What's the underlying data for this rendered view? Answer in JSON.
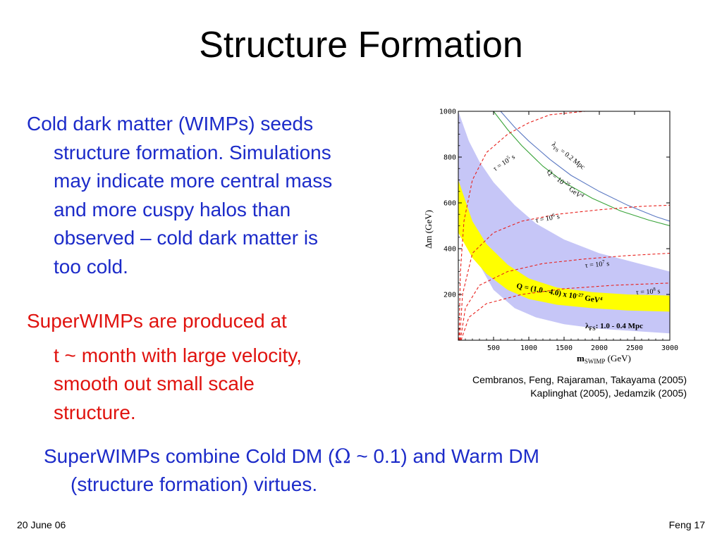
{
  "slide": {
    "title": "Structure Formation",
    "para1": {
      "lines": [
        "Cold dark matter (WIMPs) seeds",
        "structure formation. Simulations",
        "may indicate more central mass",
        "and more cuspy halos than",
        "observed – cold dark matter is",
        "too cold."
      ]
    },
    "para2": {
      "lines": [
        "SuperWIMPs are produced at",
        "t ~ month with large velocity,",
        "smooth out small scale",
        "structure."
      ]
    },
    "para3": {
      "line1_pre": "SuperWIMPs combine Cold DM (",
      "omega": "Ω",
      "line1_post": " ~ 0.1) and Warm DM",
      "line2": "(structure formation) virtues."
    },
    "caption": {
      "line1": "Cembranos, Feng, Rajaraman, Takayama (2005)",
      "line2": "Kaplinghat (2005), Jedamzik (2005)"
    },
    "footer": {
      "left": "20 June 06",
      "right": "Feng 17"
    },
    "colors": {
      "blue_text": "#1c2bc9",
      "red_text": "#e0130f",
      "band_yellow": "#ffff00",
      "band_lavender": "#c6c6f7",
      "tau_lines": "#e8201c",
      "lambda_line": "#5a78c2",
      "q_line": "#3aa43a"
    }
  },
  "chart_data": {
    "type": "line",
    "xlim": [
      0,
      3000
    ],
    "ylim": [
      0,
      1000
    ],
    "x_ticks": [
      "500",
      "1000",
      "1500",
      "2000",
      "2500",
      "3000"
    ],
    "y_ticks": [
      "200",
      "400",
      "600",
      "800",
      "1000"
    ],
    "x_tick_values": [
      500,
      1000,
      1500,
      2000,
      2500,
      3000
    ],
    "y_tick_values": [
      200,
      400,
      600,
      800,
      1000
    ],
    "xlabel_main": "m",
    "xlabel_sub": "SWIMP",
    "xlabel_unit": " (GeV)",
    "ylabel": "Δm (GeV)",
    "series": [
      {
        "name": "λFS = 0.2 Mpc",
        "kind": "lambda",
        "x": [
          600,
          800,
          1000,
          1300,
          1600,
          2000,
          2400,
          2800,
          3000
        ],
        "y": [
          1000,
          930,
          870,
          790,
          720,
          650,
          590,
          540,
          520
        ]
      },
      {
        "name": "Q = 10^-25 GeV^4",
        "kind": "q",
        "x": [
          500,
          700,
          900,
          1200,
          1500,
          1900,
          2300,
          2700,
          3000
        ],
        "y": [
          1000,
          920,
          850,
          760,
          690,
          620,
          565,
          525,
          500
        ]
      },
      {
        "name": "τ = 10^5 s",
        "kind": "tau",
        "x": [
          10,
          30,
          80,
          200,
          400,
          700,
          1000,
          1300,
          1800
        ],
        "y": [
          0,
          300,
          520,
          700,
          820,
          900,
          950,
          985,
          1000
        ]
      },
      {
        "name": "τ = 10^6 s",
        "kind": "tau",
        "x": [
          20,
          60,
          200,
          500,
          900,
          1400,
          2000,
          2600,
          3000
        ],
        "y": [
          0,
          200,
          380,
          470,
          520,
          550,
          570,
          585,
          590
        ]
      },
      {
        "name": "τ = 10^7 s",
        "kind": "tau",
        "x": [
          30,
          100,
          300,
          700,
          1200,
          1800,
          2400,
          3000
        ],
        "y": [
          0,
          140,
          240,
          300,
          335,
          355,
          370,
          380
        ]
      },
      {
        "name": "τ = 10^8 s",
        "kind": "tau",
        "x": [
          40,
          150,
          400,
          900,
          1500,
          2200,
          3000
        ],
        "y": [
          0,
          100,
          160,
          200,
          225,
          240,
          250
        ]
      }
    ],
    "bands": [
      {
        "name": "λFS = 1.0 - 0.4 Mpc",
        "color": "lavender",
        "x": [
          0,
          150,
          300,
          500,
          800,
          1100,
          1500,
          2000,
          2500,
          3000
        ],
        "upper": [
          1000,
          870,
          780,
          690,
          590,
          510,
          440,
          380,
          340,
          300
        ],
        "lower": [
          650,
          470,
          330,
          220,
          140,
          100,
          70,
          50,
          40,
          30
        ]
      },
      {
        "name": "Q = (1.0 - 4.0) x 10^-27 GeV^4",
        "color": "yellow",
        "x": [
          0,
          200,
          400,
          700,
          1000,
          1400,
          1900,
          2400,
          3000
        ],
        "upper": [
          700,
          520,
          420,
          330,
          270,
          230,
          210,
          200,
          195
        ],
        "lower": [
          470,
          360,
          290,
          220,
          180,
          155,
          140,
          130,
          125
        ]
      }
    ],
    "annotations": [
      {
        "text": "τ = 10",
        "sup": "5",
        "unit": " s"
      },
      {
        "text": "λ",
        "sub": "FS",
        "unit": " = 0.2 Mpc"
      },
      {
        "text": "Q = 10",
        "sup": "-25",
        "unit": " GeV",
        "sup2": "4"
      },
      {
        "text": "τ = 10",
        "sup": "6",
        "unit": " s"
      },
      {
        "text": "τ = 10",
        "sup": "7",
        "unit": " s"
      },
      {
        "text": "τ = 10",
        "sup": "8",
        "unit": " s"
      },
      {
        "text": "Q = (1.0 - 4.0) x 10",
        "sup": "-27",
        "unit": " GeV",
        "sup2": "4"
      },
      {
        "text": "λ",
        "sub": "FS",
        "unit": ": 1.0 - 0.4 Mpc"
      }
    ]
  }
}
